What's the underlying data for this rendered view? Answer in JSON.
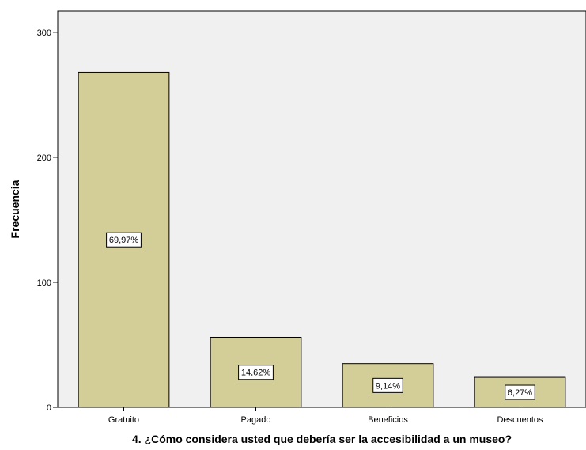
{
  "chart_data": {
    "type": "bar",
    "categories": [
      "Gratuito",
      "Pagado",
      "Beneficios",
      "Descuentos"
    ],
    "values": [
      268,
      56,
      35,
      24
    ],
    "data_labels": [
      "69,97%",
      "14,62%",
      "9,14%",
      "6,27%"
    ],
    "xlabel": "4. ¿Cómo considera usted que debería ser la accesibilidad a un museo?",
    "ylabel": "Frecuencia",
    "ylim": [
      0,
      317
    ],
    "yticks": [
      0,
      100,
      200,
      300
    ],
    "grid": false,
    "colors": {
      "plot_background": "#f0f0f0",
      "bar_fill": "#d3ce97",
      "bar_stroke": "#000000",
      "label_box_fill": "#ffffff"
    }
  }
}
